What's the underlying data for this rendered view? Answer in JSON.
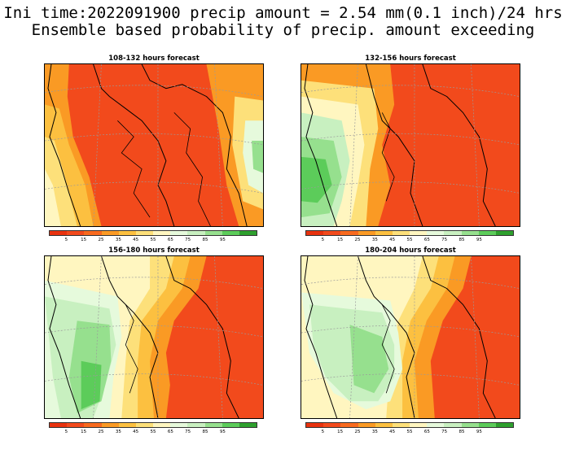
{
  "title_line1": "Ini time:2022091900 precip amount = 2.54 mm(0.1 inch)/24 hrs",
  "title_line2": "Ensemble based probability of precip. amount exceeding",
  "colors": {
    "scale": [
      "#e8320e",
      "#f24a1c",
      "#f86a1e",
      "#fa9a24",
      "#fcc040",
      "#fde07a",
      "#fff6c0",
      "#e6fadc",
      "#c8f0c0",
      "#96e08e",
      "#5ccc5a",
      "#2ea02e"
    ],
    "coast": "#000000",
    "grid": "#9a9a9a"
  },
  "colorbar": {
    "ticks": [
      "5",
      "15",
      "25",
      "35",
      "45",
      "55",
      "65",
      "75",
      "85",
      "95"
    ]
  },
  "panels": [
    {
      "title": "108-132 hours forecast",
      "map": "map1",
      "pattern": "west-yellow-east-green"
    },
    {
      "title": "132-156 hours forecast",
      "map": "map2",
      "pattern": "west-green"
    },
    {
      "title": "156-180 hours forecast",
      "map": "map3",
      "pattern": "west-green-large"
    },
    {
      "title": "180-204 hours forecast",
      "map": "map4",
      "pattern": "west-green-center"
    }
  ]
}
